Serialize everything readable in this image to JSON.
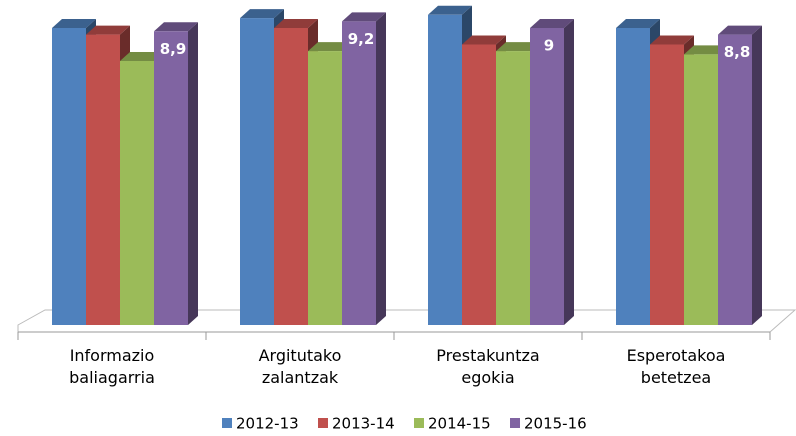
{
  "chart_data": {
    "type": "bar3d",
    "categories": [
      "Informazio baliagarria",
      "Argitutako zalantzak",
      "Prestakuntza egokia",
      "Esperotakoa betetzea"
    ],
    "series": [
      {
        "name": "2012-13",
        "color": "#4f81bd",
        "values": [
          9.0,
          9.3,
          9.4,
          9.0
        ]
      },
      {
        "name": "2013-14",
        "color": "#c0504d",
        "values": [
          8.8,
          9.0,
          8.5,
          8.5
        ]
      },
      {
        "name": "2014-15",
        "color": "#9bbb59",
        "values": [
          8.0,
          8.3,
          8.3,
          8.2
        ]
      },
      {
        "name": "2015-16",
        "color": "#8064a2",
        "values": [
          8.9,
          9.2,
          9.0,
          8.8
        ],
        "value_labels": [
          "8,9",
          "9,2",
          "9",
          "8,8"
        ]
      }
    ]
  }
}
